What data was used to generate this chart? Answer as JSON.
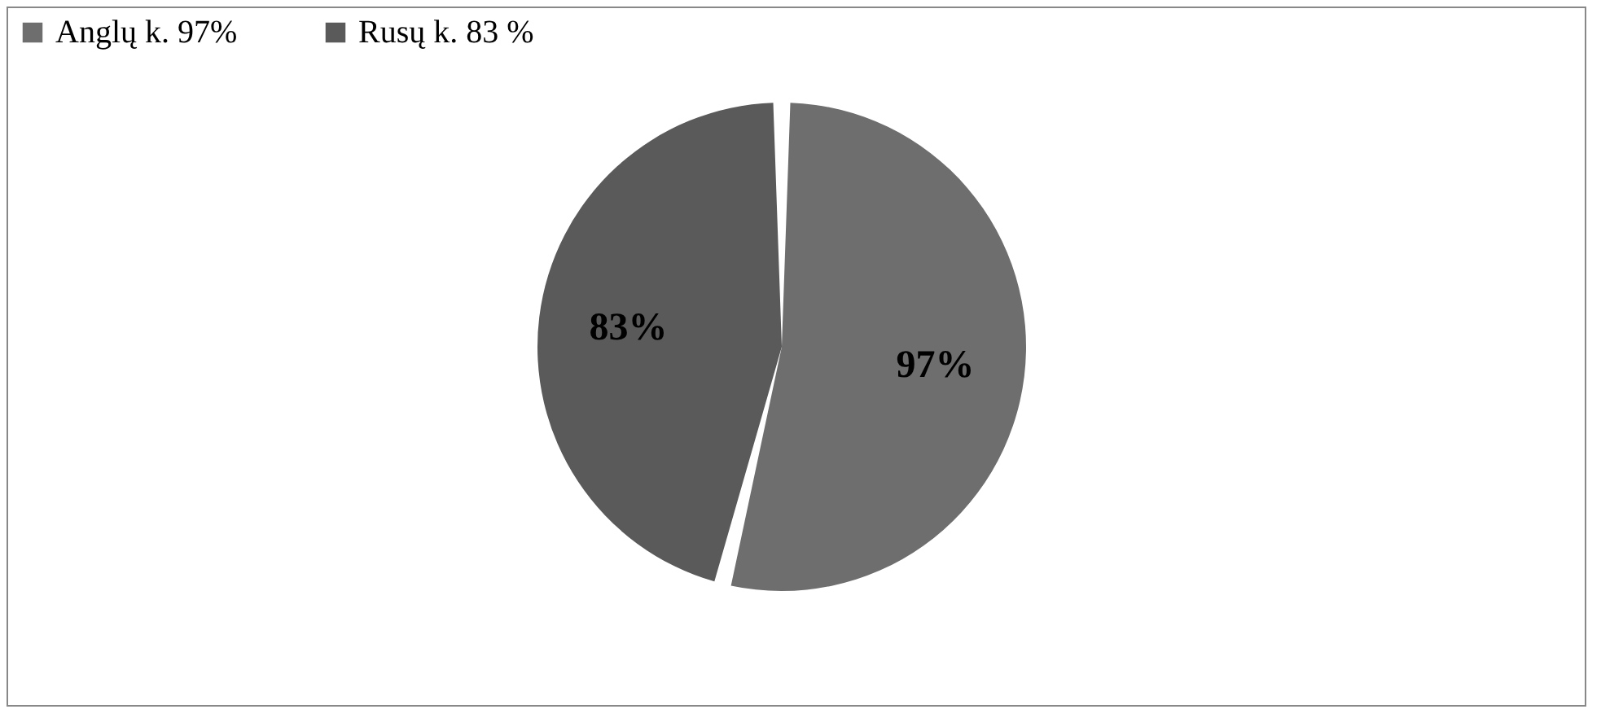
{
  "chart_data": {
    "type": "pie",
    "categories": [
      "Anglų k. 97%",
      "Rusų k. 83 %"
    ],
    "values": [
      97,
      83
    ],
    "colors": [
      "#6e6e6e",
      "#5a5a5a"
    ],
    "value_labels": [
      "97%",
      "83%"
    ],
    "legend": "top"
  }
}
